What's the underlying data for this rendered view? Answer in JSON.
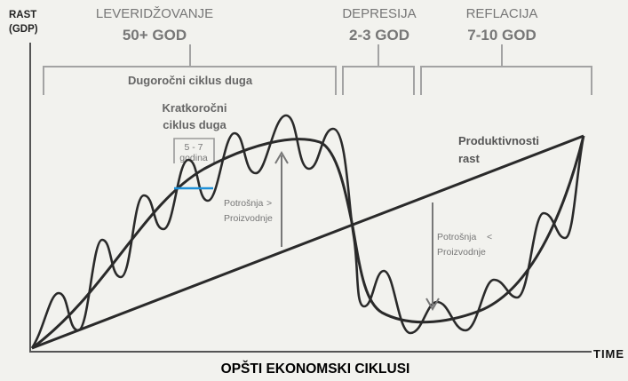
{
  "axes": {
    "y_title_line1": "RAST",
    "y_title_line2": "(GDP)",
    "x_title": "TIME"
  },
  "phases": [
    {
      "name": "LEVERIDŽOVANJE",
      "duration": "50+ GOD"
    },
    {
      "name": "DEPRESIJA",
      "duration": "2-3 GOD"
    },
    {
      "name": "REFLACIJA",
      "duration": "7-10 GOD"
    }
  ],
  "long_cycle_label": "Dugoročni ciklus duga",
  "short_cycle_label_line1": "Kratkoročni",
  "short_cycle_label_line2": "ciklus duga",
  "short_cycle_years_line1": "5 - 7",
  "short_cycle_years_line2": "godina",
  "productivity_label_line1": "Produktivnosti",
  "productivity_label_line2": "rast",
  "annotation_left": {
    "line1": "Potrošnja",
    "line2": "Proizvodnje",
    "sign": ">"
  },
  "annotation_right": {
    "line1": "Potrošnja",
    "line2": "Proizvodnje",
    "sign": "<"
  },
  "footer_title": "OPŠTI EKONOMSKI CIKLUSI",
  "colors": {
    "curve": "#2a2a2a",
    "bracket": "#9a9a9a",
    "highlight": "#1e90d8"
  }
}
